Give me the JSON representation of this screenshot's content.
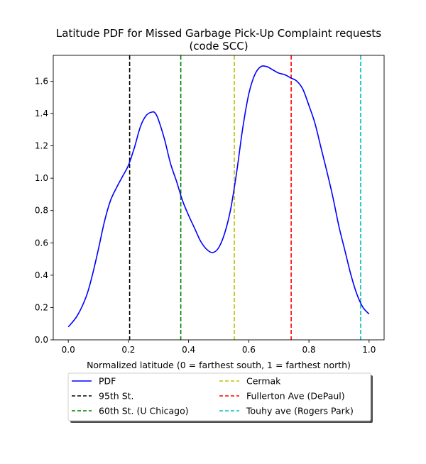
{
  "chart_data": {
    "type": "line",
    "title_line1": "Latitude PDF for Missed Garbage Pick-Up Complaint  requests",
    "title_line2": "(code SCC)",
    "xlabel": "Normalized latitude (0 = farthest south, 1 = farthest north)",
    "ylabel": "",
    "xlim": [
      -0.05,
      1.05
    ],
    "ylim": [
      0.0,
      1.76
    ],
    "xticks": [
      0.0,
      0.2,
      0.4,
      0.6,
      0.8,
      1.0
    ],
    "xtick_labels": [
      "0.0",
      "0.2",
      "0.4",
      "0.6",
      "0.8",
      "1.0"
    ],
    "yticks": [
      0.0,
      0.2,
      0.4,
      0.6,
      0.8,
      1.0,
      1.2,
      1.4,
      1.6
    ],
    "ytick_labels": [
      "0.0",
      "0.2",
      "0.4",
      "0.6",
      "0.8",
      "1.0",
      "1.2",
      "1.4",
      "1.6"
    ],
    "grid": false,
    "legend_position": "below plot, two columns",
    "series": [
      {
        "name": "PDF",
        "color": "#0000ff",
        "style": "solid",
        "x": [
          0.0,
          0.03,
          0.06,
          0.08,
          0.1,
          0.12,
          0.14,
          0.16,
          0.18,
          0.2,
          0.22,
          0.24,
          0.26,
          0.28,
          0.29,
          0.3,
          0.32,
          0.34,
          0.36,
          0.38,
          0.4,
          0.42,
          0.44,
          0.46,
          0.48,
          0.5,
          0.52,
          0.54,
          0.56,
          0.58,
          0.6,
          0.62,
          0.64,
          0.66,
          0.68,
          0.7,
          0.72,
          0.74,
          0.76,
          0.78,
          0.8,
          0.82,
          0.84,
          0.86,
          0.88,
          0.9,
          0.92,
          0.94,
          0.96,
          0.98,
          1.0
        ],
        "y": [
          0.08,
          0.15,
          0.27,
          0.4,
          0.56,
          0.73,
          0.86,
          0.94,
          1.01,
          1.08,
          1.19,
          1.32,
          1.39,
          1.41,
          1.4,
          1.36,
          1.24,
          1.09,
          0.98,
          0.86,
          0.77,
          0.69,
          0.61,
          0.56,
          0.54,
          0.57,
          0.66,
          0.81,
          1.04,
          1.31,
          1.52,
          1.64,
          1.69,
          1.69,
          1.67,
          1.65,
          1.64,
          1.62,
          1.6,
          1.55,
          1.45,
          1.34,
          1.19,
          1.04,
          0.88,
          0.7,
          0.55,
          0.4,
          0.28,
          0.2,
          0.16
        ]
      }
    ],
    "reference_lines": [
      {
        "name": "95th St.",
        "x": 0.204,
        "color": "#000000"
      },
      {
        "name": "60th St. (U Chicago)",
        "x": 0.374,
        "color": "#008000"
      },
      {
        "name": "Cermak",
        "x": 0.552,
        "color": "#bfbf00"
      },
      {
        "name": "Fullerton Ave (DePaul)",
        "x": 0.741,
        "color": "#ff0000"
      },
      {
        "name": "Touhy ave (Rogers Park)",
        "x": 0.972,
        "color": "#00bfbf"
      }
    ],
    "legend_entries": [
      {
        "label": "PDF",
        "color": "#0000ff",
        "dashed": false
      },
      {
        "label": "95th St.",
        "color": "#000000",
        "dashed": true
      },
      {
        "label": "60th St. (U Chicago)",
        "color": "#008000",
        "dashed": true
      },
      {
        "label": "Cermak",
        "color": "#bfbf00",
        "dashed": true
      },
      {
        "label": "Fullerton Ave (DePaul)",
        "color": "#ff0000",
        "dashed": true
      },
      {
        "label": "Touhy ave (Rogers Park)",
        "color": "#00bfbf",
        "dashed": true
      }
    ]
  }
}
